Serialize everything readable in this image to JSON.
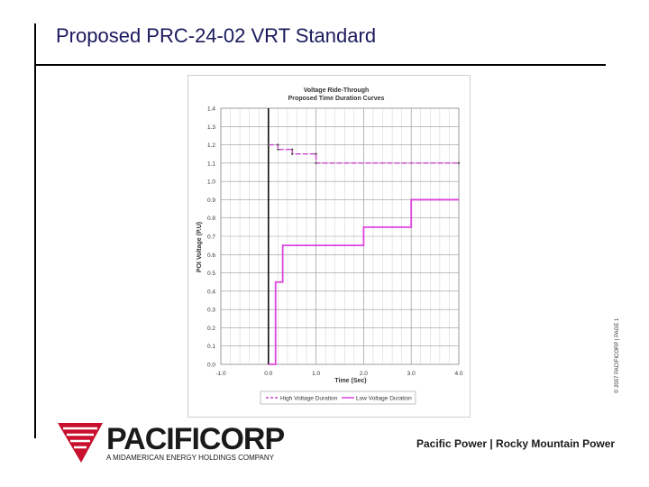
{
  "page": {
    "title": "Proposed PRC-24-02 VRT Standard",
    "side_copy": "© 2007 PACIFICORP | PAGE 1"
  },
  "footer": {
    "logo_text": "PACIFICORP",
    "logo_subtext": "A MIDAMERICAN ENERGY HOLDINGS COMPANY",
    "brands_text": "Pacific Power | Rocky Mountain Power",
    "logo_color": "#c8102e"
  },
  "chart_data": {
    "type": "line",
    "title": "Voltage Ride-Through",
    "subtitle": "Proposed Time Duration Curves",
    "xlabel": "Time (Sec)",
    "ylabel": "POI Voltage (P.U)",
    "xlim": [
      -1.0,
      4.0
    ],
    "ylim": [
      0.0,
      1.4
    ],
    "xticks": [
      -1.0,
      0.0,
      1.0,
      2.0,
      3.0,
      4.0
    ],
    "xtick_labels": [
      "-1.0",
      "0.0",
      "1.0",
      "2.0",
      "3.0",
      "4.0"
    ],
    "yticks": [
      0.0,
      0.1,
      0.2,
      0.3,
      0.4,
      0.5,
      0.6,
      0.7,
      0.8,
      0.9,
      1.0,
      1.1,
      1.2,
      1.3,
      1.4
    ],
    "ytick_labels": [
      "0.0",
      "0.1",
      "0.2",
      "0.3",
      "0.4",
      "0.5",
      "0.6",
      "0.7",
      "0.8",
      "0.9",
      "1.0",
      "1.1",
      "1.2",
      "1.3",
      "1.4"
    ],
    "grid": true,
    "legend_position": "bottom",
    "series": [
      {
        "name": "High Voltage Duration",
        "color": "#cc44cc",
        "dashed": true,
        "x": [
          0.0,
          0.2,
          0.2,
          0.5,
          0.5,
          1.0,
          1.0,
          4.0
        ],
        "y": [
          1.2,
          1.2,
          1.175,
          1.175,
          1.15,
          1.15,
          1.1,
          1.1
        ]
      },
      {
        "name": "Low Voltage Duration",
        "color": "#dd44dd",
        "dashed": false,
        "x": [
          0.0,
          0.15,
          0.15,
          0.3,
          0.3,
          2.0,
          2.0,
          3.0,
          3.0,
          4.0
        ],
        "y": [
          0.0,
          0.0,
          0.45,
          0.45,
          0.65,
          0.65,
          0.75,
          0.75,
          0.9,
          0.9
        ]
      }
    ],
    "event_marker": {
      "x": 0.0,
      "color": "#000000"
    }
  }
}
